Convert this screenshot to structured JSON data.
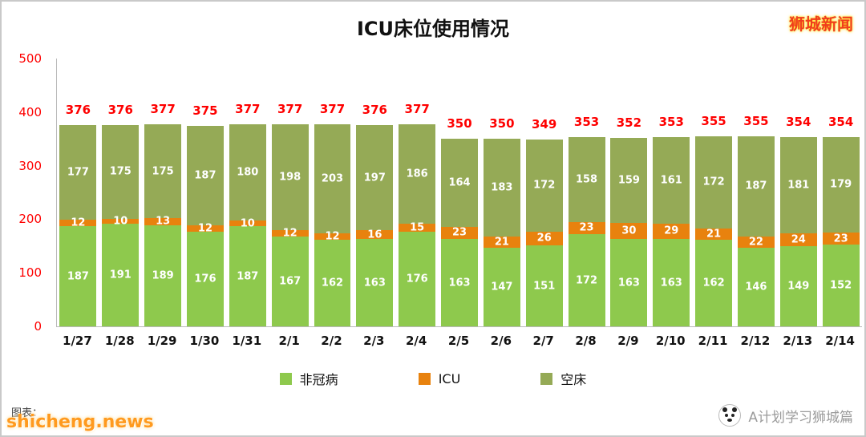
{
  "page": {
    "title": "ICU床位使用情况",
    "brand": "狮城新闻",
    "watermark": "shicheng.news",
    "caption": "图表：",
    "footer_brand": "A计划学习狮城篇"
  },
  "colors": {
    "non_covid": "#8ec94d",
    "icu": "#e8820e",
    "empty_bed": "#95aa56",
    "total_label": "#fe0000",
    "axis_tick": "#fe0000"
  },
  "chart_data": {
    "type": "bar",
    "stacked": true,
    "title": "ICU床位使用情况",
    "categories": [
      "1/27",
      "1/28",
      "1/29",
      "1/30",
      "1/31",
      "2/1",
      "2/2",
      "2/3",
      "2/4",
      "2/5",
      "2/6",
      "2/7",
      "2/8",
      "2/9",
      "2/10",
      "2/11",
      "2/12",
      "2/13",
      "2/14"
    ],
    "series": [
      {
        "key": "non-covid",
        "name": "非冠病",
        "color": "#8ec94d",
        "values": [
          187,
          191,
          189,
          176,
          187,
          167,
          162,
          163,
          176,
          163,
          147,
          151,
          172,
          163,
          163,
          162,
          146,
          149,
          152
        ]
      },
      {
        "key": "icu",
        "name": "ICU",
        "color": "#e8820e",
        "values": [
          12,
          10,
          13,
          12,
          10,
          12,
          12,
          16,
          15,
          23,
          21,
          26,
          23,
          30,
          29,
          21,
          22,
          24,
          23
        ]
      },
      {
        "key": "empty-bed",
        "name": "空床",
        "color": "#95aa56",
        "values": [
          177,
          175,
          175,
          187,
          180,
          198,
          203,
          197,
          186,
          164,
          183,
          172,
          158,
          159,
          161,
          172,
          187,
          181,
          179
        ]
      }
    ],
    "totals": [
      376,
      376,
      377,
      375,
      377,
      377,
      377,
      376,
      377,
      350,
      350,
      349,
      353,
      352,
      353,
      355,
      355,
      354,
      354
    ],
    "ylim": [
      0,
      500
    ],
    "yticks": [
      0,
      100,
      200,
      300,
      400,
      500
    ],
    "legend_position": "bottom",
    "grid": false
  }
}
